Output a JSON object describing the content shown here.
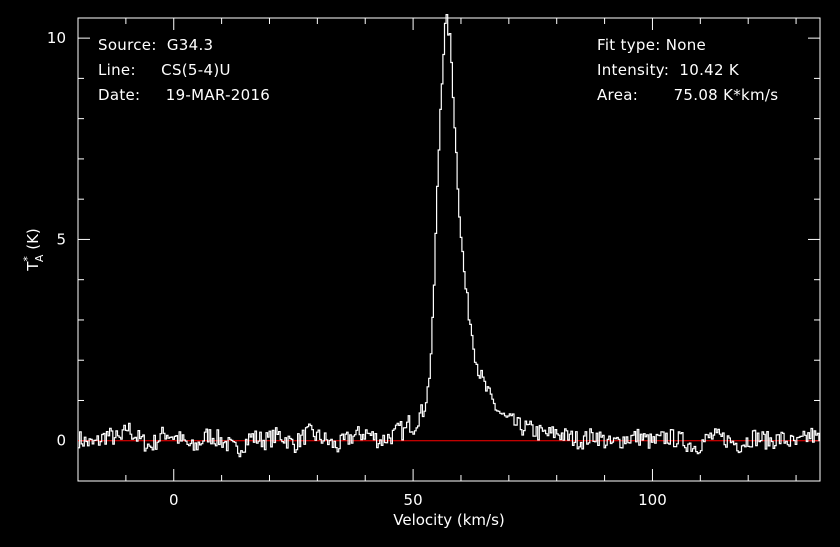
{
  "info_left": {
    "source_label": "Source:",
    "source_value": "G34.3",
    "line_label": "Line:",
    "line_value": "CS(5-4)U",
    "date_label": "Date:",
    "date_value": "19-MAR-2016"
  },
  "info_right": {
    "fit_label": "Fit type:",
    "fit_value": "None",
    "intensity_label": "Intensity:",
    "intensity_value": "10.42 K",
    "area_label": "Area:",
    "area_value": "75.08 K*km/s"
  },
  "chart_data": {
    "type": "line",
    "xlabel": "Velocity (km/s)",
    "ylabel": "T*A (K)",
    "xlim": [
      -20,
      135
    ],
    "ylim": [
      -1,
      10.5
    ],
    "x_ticks": [
      0,
      50,
      100
    ],
    "y_ticks": [
      0,
      5,
      10
    ],
    "series": [
      {
        "line_style": "steps",
        "color": "#ffffff",
        "x": [
          -20,
          -17,
          -14,
          -11,
          -10,
          -8,
          -5,
          -2,
          1,
          4,
          7,
          10,
          13,
          16,
          19,
          22,
          25,
          28,
          31,
          34,
          37,
          40,
          43,
          46,
          47,
          48,
          49,
          50,
          51,
          52,
          53,
          53.5,
          54,
          54.5,
          55,
          55.5,
          56,
          56.5,
          57,
          57.5,
          58,
          58.5,
          59,
          59.5,
          60,
          60.5,
          61,
          61.5,
          62,
          62.5,
          63,
          64,
          65,
          66,
          67,
          68,
          69,
          70,
          72,
          74,
          76,
          78,
          80,
          82,
          85,
          88,
          91,
          94,
          97,
          100,
          103,
          106,
          109,
          112,
          115,
          118,
          121,
          124,
          127,
          130,
          133,
          135
        ],
        "y": [
          0.05,
          -0.1,
          0.15,
          0.0,
          0.35,
          0.1,
          -0.15,
          0.2,
          0.05,
          -0.2,
          0.15,
          0.0,
          -0.25,
          0.1,
          0.0,
          0.15,
          -0.1,
          0.2,
          0.05,
          -0.15,
          0.1,
          0.2,
          0.0,
          0.15,
          0.3,
          0.2,
          0.45,
          0.35,
          0.6,
          0.75,
          1.3,
          2.0,
          3.0,
          4.8,
          6.5,
          8.1,
          9.3,
          10.2,
          10.42,
          10.0,
          9.2,
          8.0,
          6.8,
          5.8,
          4.9,
          4.2,
          3.6,
          3.2,
          2.8,
          2.5,
          2.0,
          1.6,
          1.3,
          1.05,
          0.85,
          0.7,
          0.55,
          0.5,
          0.35,
          0.3,
          0.2,
          0.15,
          0.2,
          0.1,
          0.0,
          0.15,
          -0.1,
          0.05,
          0.1,
          -0.05,
          0.1,
          0.0,
          -0.15,
          0.1,
          0.05,
          -0.1,
          0.1,
          0.0,
          0.05,
          -0.1,
          0.15,
          0.0
        ]
      },
      {
        "color": "#ff0000",
        "x": [
          -20,
          135
        ],
        "y": [
          0,
          0
        ]
      }
    ]
  }
}
